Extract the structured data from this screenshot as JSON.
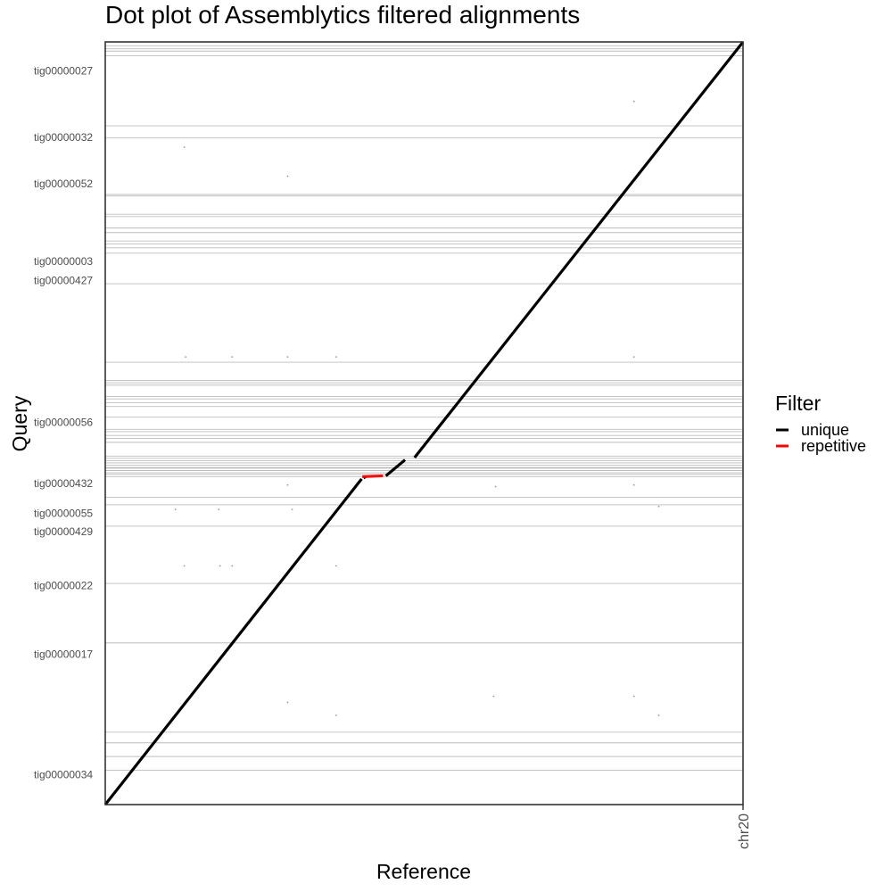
{
  "chart_data": {
    "type": "line",
    "title": "Dot plot of Assemblytics filtered alignments",
    "xlabel": "Reference",
    "ylabel": "Query",
    "x_ticks": [
      "chr20"
    ],
    "y_ticks": [
      {
        "label": "tig00000027",
        "value": 0.962
      },
      {
        "label": "tig00000032",
        "value": 0.875
      },
      {
        "label": "tig00000052",
        "value": 0.814
      },
      {
        "label": "tig00000003",
        "value": 0.712
      },
      {
        "label": "tig00000427",
        "value": 0.687
      },
      {
        "label": "tig00000056",
        "value": 0.501
      },
      {
        "label": "tig00000432",
        "value": 0.421
      },
      {
        "label": "tig00000055",
        "value": 0.382
      },
      {
        "label": "tig00000429",
        "value": 0.358
      },
      {
        "label": "tig00000022",
        "value": 0.287
      },
      {
        "label": "tig00000017",
        "value": 0.197
      },
      {
        "label": "tig00000034",
        "value": 0.039
      }
    ],
    "contig_boundaries": [
      0.045,
      0.063,
      0.081,
      0.095,
      0.212,
      0.29,
      0.365,
      0.393,
      0.403,
      0.43,
      0.433,
      0.435,
      0.438,
      0.441,
      0.442,
      0.445,
      0.448,
      0.451,
      0.454,
      0.457,
      0.475,
      0.48,
      0.484,
      0.489,
      0.492,
      0.508,
      0.522,
      0.527,
      0.532,
      0.535,
      0.55,
      0.553,
      0.556,
      0.58,
      0.683,
      0.723,
      0.73,
      0.735,
      0.739,
      0.75,
      0.756,
      0.771,
      0.774,
      0.798,
      0.8,
      0.874,
      0.89,
      0.982,
      0.988,
      0.991,
      0.995
    ],
    "xlim": [
      0,
      1
    ],
    "ylim": [
      0,
      1
    ],
    "grid": "horizontal contig boundaries",
    "legend": {
      "title": "Filter",
      "position": "right",
      "entries": [
        {
          "label": "unique",
          "color": "#000000"
        },
        {
          "label": "repetitive",
          "color": "#ff0000"
        }
      ]
    },
    "series": [
      {
        "name": "unique",
        "color": "#000000",
        "segments": [
          {
            "x": [
              0.0,
              0.402
            ],
            "y": [
              0.0,
              0.427
            ]
          },
          {
            "x": [
              0.405,
              0.408
            ],
            "y": [
              0.428,
              0.43
            ]
          },
          {
            "x": [
              0.44,
              0.47
            ],
            "y": [
              0.431,
              0.452
            ]
          },
          {
            "x": [
              0.485,
              1.0
            ],
            "y": [
              0.455,
              1.0
            ]
          }
        ]
      },
      {
        "name": "repetitive",
        "color": "#ff0000",
        "segments": [
          {
            "x": [
              0.403,
              0.435
            ],
            "y": [
              0.43,
              0.431
            ]
          }
        ]
      }
    ],
    "scatter_points": [
      {
        "x": 0.124,
        "y": 0.862
      },
      {
        "x": 0.286,
        "y": 0.824
      },
      {
        "x": 0.829,
        "y": 0.922
      },
      {
        "x": 0.126,
        "y": 0.587
      },
      {
        "x": 0.199,
        "y": 0.587
      },
      {
        "x": 0.286,
        "y": 0.587
      },
      {
        "x": 0.362,
        "y": 0.587
      },
      {
        "x": 0.829,
        "y": 0.587
      },
      {
        "x": 0.286,
        "y": 0.419
      },
      {
        "x": 0.612,
        "y": 0.417
      },
      {
        "x": 0.829,
        "y": 0.419
      },
      {
        "x": 0.11,
        "y": 0.387
      },
      {
        "x": 0.178,
        "y": 0.387
      },
      {
        "x": 0.293,
        "y": 0.387
      },
      {
        "x": 0.868,
        "y": 0.391
      },
      {
        "x": 0.124,
        "y": 0.313
      },
      {
        "x": 0.18,
        "y": 0.313
      },
      {
        "x": 0.199,
        "y": 0.313
      },
      {
        "x": 0.362,
        "y": 0.313
      },
      {
        "x": 0.286,
        "y": 0.134
      },
      {
        "x": 0.362,
        "y": 0.117
      },
      {
        "x": 0.609,
        "y": 0.142
      },
      {
        "x": 0.829,
        "y": 0.142
      },
      {
        "x": 0.868,
        "y": 0.117
      }
    ]
  }
}
